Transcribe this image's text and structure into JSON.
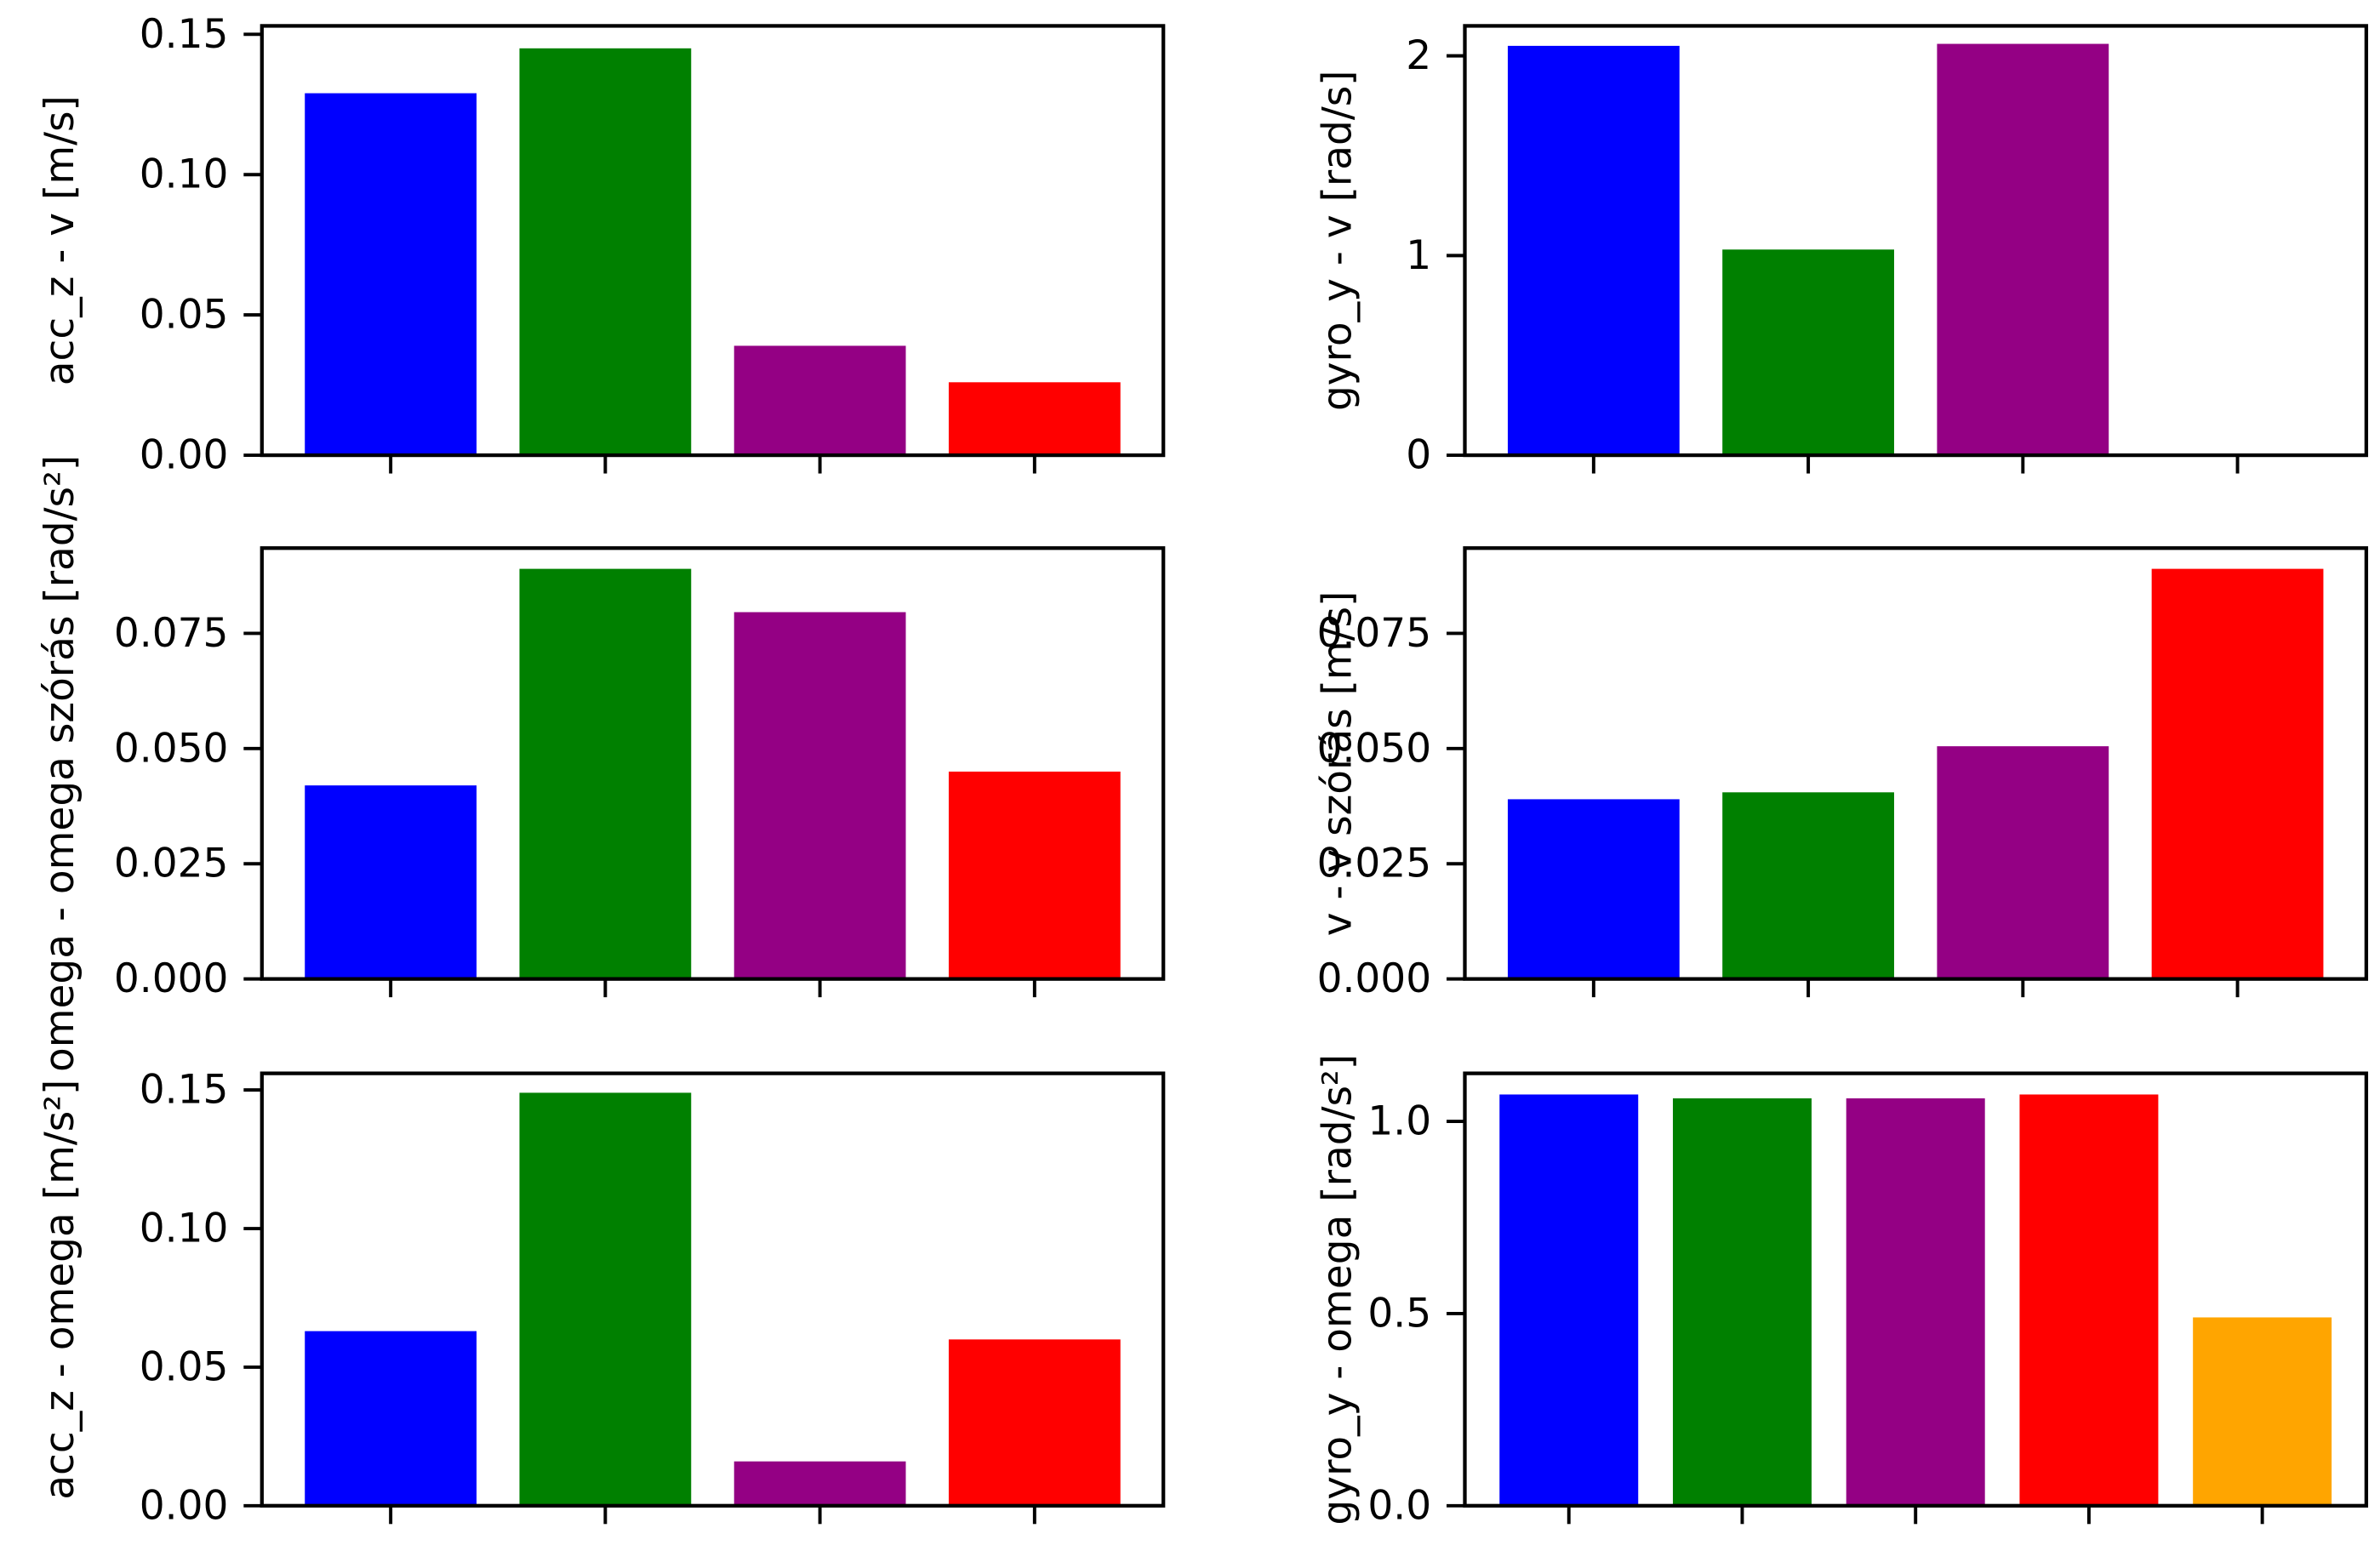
{
  "colors": {
    "blue": "#0000ff",
    "green": "#008000",
    "purple": "#940084",
    "red": "#ff0000",
    "orange": "#ffa500",
    "axis": "#000000",
    "background": "#ffffff"
  },
  "chart_data": [
    {
      "type": "bar",
      "ylabel": "acc_z - v [m/s]",
      "ylim": [
        0,
        0.153
      ],
      "yticks": [
        0.0,
        0.05,
        0.1,
        0.15
      ],
      "ytick_labels": [
        "0.00",
        "0.05",
        "0.10",
        "0.15"
      ],
      "categories": [
        "",
        "",
        "",
        ""
      ],
      "values": [
        0.129,
        0.145,
        0.039,
        0.026
      ],
      "colors": [
        "blue",
        "green",
        "purple",
        "red"
      ]
    },
    {
      "type": "bar",
      "ylabel": "gyro_y - v [rad/s]",
      "ylim": [
        0,
        2.15
      ],
      "yticks": [
        0,
        1,
        2
      ],
      "ytick_labels": [
        "0",
        "1",
        "2"
      ],
      "categories": [
        "",
        "",
        "",
        ""
      ],
      "values": [
        2.05,
        1.03,
        2.06,
        0.0
      ],
      "colors": [
        "blue",
        "green",
        "purple",
        "red"
      ]
    },
    {
      "type": "bar",
      "ylabel": "omega - omega szórás [rad/s²]",
      "ylim": [
        0,
        0.0935
      ],
      "yticks": [
        0.0,
        0.025,
        0.05,
        0.075
      ],
      "ytick_labels": [
        "0.000",
        "0.025",
        "0.050",
        "0.075"
      ],
      "categories": [
        "",
        "",
        "",
        ""
      ],
      "values": [
        0.042,
        0.089,
        0.0796,
        0.045
      ],
      "colors": [
        "blue",
        "green",
        "purple",
        "red"
      ]
    },
    {
      "type": "bar",
      "ylabel": "v - v szórás [m/s]",
      "ylim": [
        0,
        0.0935
      ],
      "yticks": [
        0.0,
        0.025,
        0.05,
        0.075
      ],
      "ytick_labels": [
        "0.000",
        "0.025",
        "0.050",
        "0.075"
      ],
      "categories": [
        "",
        "",
        "",
        ""
      ],
      "values": [
        0.039,
        0.0405,
        0.0505,
        0.089
      ],
      "colors": [
        "blue",
        "green",
        "purple",
        "red"
      ]
    },
    {
      "type": "bar",
      "ylabel": "acc_z - omega [m/s²]",
      "ylim": [
        0,
        0.156
      ],
      "yticks": [
        0.0,
        0.05,
        0.1,
        0.15
      ],
      "ytick_labels": [
        "0.00",
        "0.05",
        "0.10",
        "0.15"
      ],
      "categories": [
        "",
        "",
        "",
        ""
      ],
      "values": [
        0.063,
        0.149,
        0.016,
        0.06
      ],
      "colors": [
        "blue",
        "green",
        "purple",
        "red"
      ]
    },
    {
      "type": "bar",
      "ylabel": "gyro_y - omega [rad/s²]",
      "ylim": [
        0,
        1.125
      ],
      "yticks": [
        0.0,
        0.5,
        1.0
      ],
      "ytick_labels": [
        "0.0",
        "0.5",
        "1.0"
      ],
      "categories": [
        "",
        "",
        "",
        "",
        ""
      ],
      "values": [
        1.07,
        1.06,
        1.06,
        1.07,
        0.49
      ],
      "colors": [
        "blue",
        "green",
        "purple",
        "red",
        "orange"
      ]
    }
  ]
}
